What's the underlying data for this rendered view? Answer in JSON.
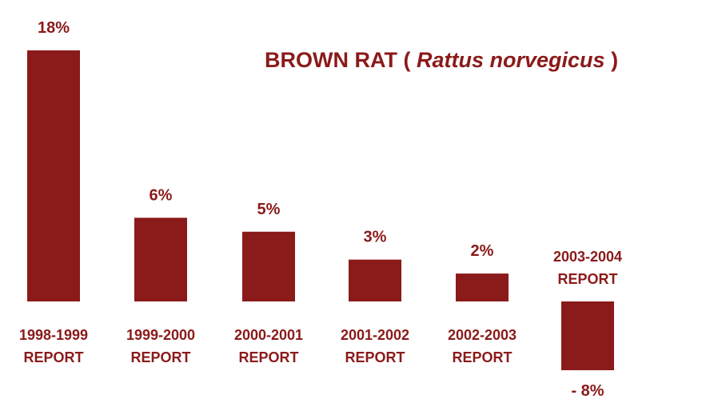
{
  "chart_data": {
    "type": "bar",
    "title_main": "BROWN RAT (",
    "title_species": "Rattus norvegicus",
    "title_close": ")",
    "categories": [
      [
        "1998-1999",
        "REPORT"
      ],
      [
        "1999-2000",
        "REPORT"
      ],
      [
        "2000-2001",
        "REPORT"
      ],
      [
        "2001-2002",
        "REPORT"
      ],
      [
        "2002-2003",
        "REPORT"
      ],
      [
        "2003-2004",
        "REPORT"
      ]
    ],
    "values": [
      18,
      6,
      5,
      3,
      2,
      -8
    ],
    "value_labels": [
      "18%",
      "6%",
      "5%",
      "3%",
      "2%",
      "- 8%"
    ],
    "unit": "%",
    "bar_color": "#8b1a1a",
    "grid": false,
    "legend": "none"
  }
}
